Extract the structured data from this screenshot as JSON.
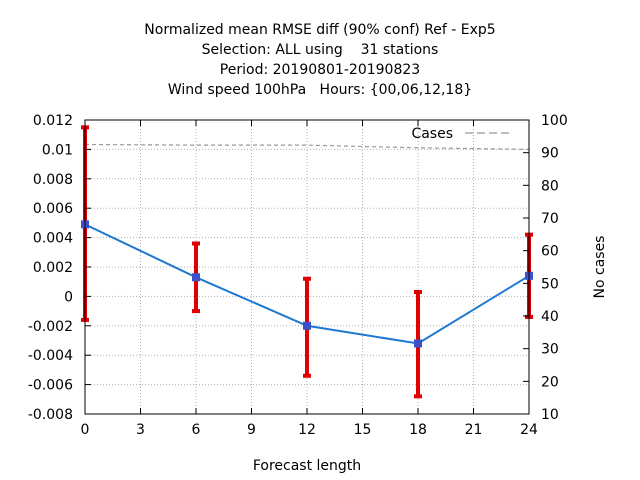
{
  "chart_data": {
    "type": "line",
    "title_lines": [
      "Normalized mean RMSE diff (90% conf) Ref - Exp5",
      "Selection: ALL using    31 stations",
      "Period: 20190801-20190823",
      "Wind speed 100hPa   Hours: {00,06,12,18}"
    ],
    "xlabel": "Forecast length",
    "ylabel": "",
    "y2label": "No cases",
    "xlim": [
      0,
      24
    ],
    "ylim": [
      -0.008,
      0.012
    ],
    "y2lim": [
      10,
      100
    ],
    "x_ticks": [
      "0",
      "3",
      "6",
      "9",
      "12",
      "15",
      "18",
      "21",
      "24"
    ],
    "y_ticks": [
      "-0.008",
      "-0.006",
      "-0.004",
      "-0.002",
      "0",
      "0.002",
      "0.004",
      "0.006",
      "0.008",
      "0.01",
      "0.012"
    ],
    "y2_ticks": [
      "10",
      "20",
      "30",
      "40",
      "50",
      "60",
      "70",
      "80",
      "90",
      "100"
    ],
    "grid": true,
    "legend_position": "top-right",
    "series": [
      {
        "x": [
          0,
          6,
          12,
          18,
          24
        ],
        "values": [
          0.0049,
          0.0013,
          -0.002,
          -0.0032,
          0.0014
        ],
        "err_low": [
          -0.0016,
          -0.001,
          -0.0054,
          -0.0068,
          -0.0014
        ],
        "err_high": [
          0.0115,
          0.0036,
          0.0012,
          0.0003,
          0.0042
        ],
        "color": "#1e78d2",
        "error_color": "#e00000",
        "marker_color": "#3c50c8"
      },
      {
        "name": "Cases",
        "axis": "y2",
        "style": "dashed",
        "color": "#999999",
        "x": [
          0,
          6,
          12,
          18,
          24
        ],
        "values": [
          92.5,
          92.3,
          92.3,
          91.5,
          91
        ]
      }
    ]
  }
}
